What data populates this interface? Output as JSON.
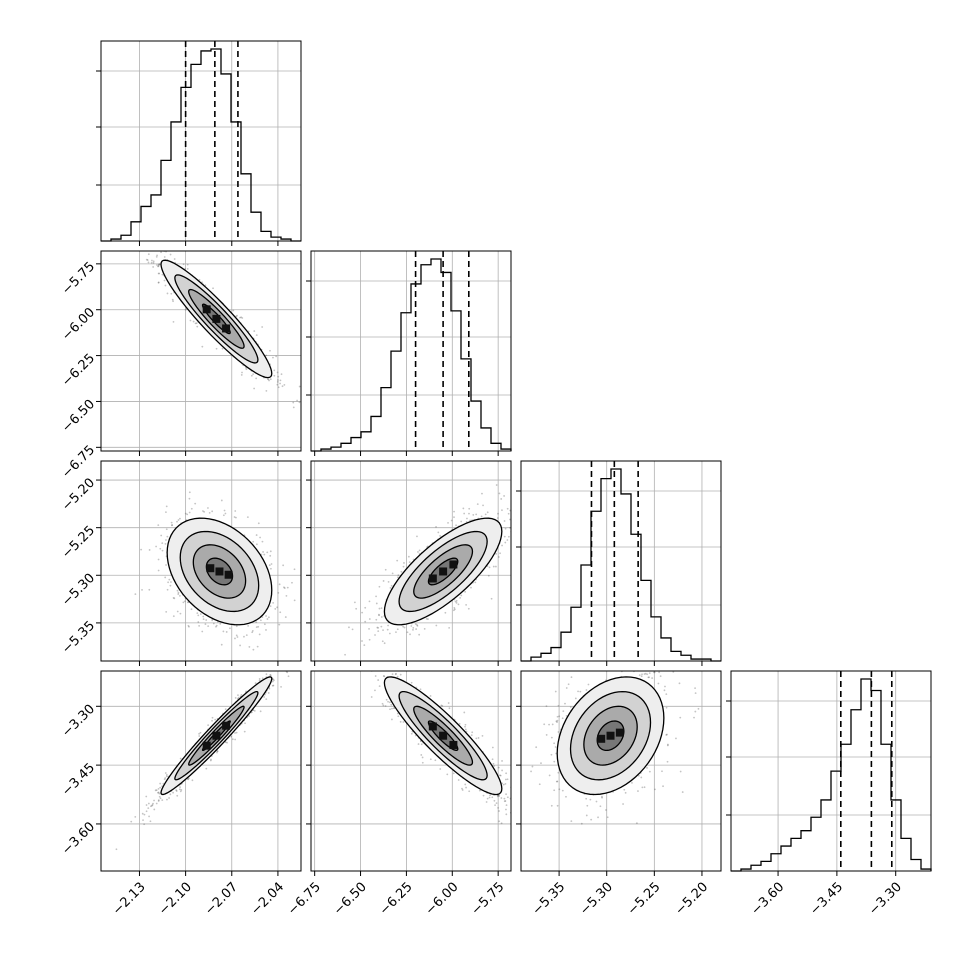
{
  "chart_data": {
    "type": "corner",
    "n_params": 4,
    "params": [
      {
        "range": [
          -2.155,
          -2.025
        ],
        "ticks": [
          -2.13,
          -2.1,
          -2.07,
          -2.04
        ],
        "tick_labels": [
          "−2.13",
          "−2.10",
          "−2.07",
          "−2.04"
        ],
        "quantiles": [
          -2.1,
          -2.081,
          -2.066
        ],
        "hist": [
          0,
          0.01,
          0.03,
          0.1,
          0.18,
          0.24,
          0.42,
          0.62,
          0.8,
          0.92,
          0.99,
          1.0,
          0.87,
          0.62,
          0.35,
          0.15,
          0.05,
          0.02,
          0.01,
          0
        ]
      },
      {
        "range": [
          -6.77,
          -5.68
        ],
        "ticks": [
          -6.75,
          -6.5,
          -6.25,
          -6.0,
          -5.75
        ],
        "tick_labels": [
          "−6.75",
          "−6.50",
          "−6.25",
          "−6.00",
          "−5.75"
        ],
        "quantiles": [
          -6.2,
          -6.05,
          -5.91
        ],
        "hist": [
          0,
          0.01,
          0.02,
          0.04,
          0.07,
          0.1,
          0.18,
          0.33,
          0.52,
          0.72,
          0.87,
          0.97,
          1.0,
          0.93,
          0.73,
          0.48,
          0.26,
          0.12,
          0.04,
          0.01
        ]
      },
      {
        "range": [
          -5.39,
          -5.18
        ],
        "ticks": [
          -5.35,
          -5.3,
          -5.25,
          -5.2
        ],
        "tick_labels": [
          "−5.35",
          "−5.30",
          "−5.25",
          "−5.20"
        ],
        "quantiles": [
          -5.316,
          -5.292,
          -5.267
        ],
        "hist": [
          0,
          0.02,
          0.04,
          0.07,
          0.15,
          0.28,
          0.5,
          0.78,
          0.95,
          1.0,
          0.87,
          0.66,
          0.42,
          0.23,
          0.12,
          0.05,
          0.03,
          0.01,
          0.01,
          0
        ]
      },
      {
        "range": [
          -3.72,
          -3.21
        ],
        "ticks": [
          -3.6,
          -3.45,
          -3.3
        ],
        "tick_labels": [
          "−3.60",
          "−3.45",
          "−3.30"
        ],
        "quantiles": [
          -3.44,
          -3.362,
          -3.31
        ],
        "hist": [
          0,
          0.01,
          0.03,
          0.05,
          0.09,
          0.13,
          0.17,
          0.21,
          0.28,
          0.37,
          0.52,
          0.66,
          0.84,
          1.0,
          0.94,
          0.66,
          0.37,
          0.17,
          0.06,
          0.01
        ]
      }
    ],
    "pairs": [
      {
        "row": 1,
        "col": 0,
        "mean": [
          -2.08,
          -6.05
        ],
        "sd": [
          0.018,
          0.16
        ],
        "corr": -0.93
      },
      {
        "row": 2,
        "col": 0,
        "mean": [
          -2.078,
          -5.296
        ],
        "sd": [
          0.017,
          0.028
        ],
        "corr": -0.35
      },
      {
        "row": 2,
        "col": 1,
        "mean": [
          -6.05,
          -5.296
        ],
        "sd": [
          0.16,
          0.028
        ],
        "corr": 0.75
      },
      {
        "row": 3,
        "col": 0,
        "mean": [
          -2.08,
          -3.375
        ],
        "sd": [
          0.018,
          0.075
        ],
        "corr": 0.97
      },
      {
        "row": 3,
        "col": 1,
        "mean": [
          -6.05,
          -3.375
        ],
        "sd": [
          0.16,
          0.075
        ],
        "corr": -0.9
      },
      {
        "row": 3,
        "col": 2,
        "mean": [
          -5.296,
          -3.375
        ],
        "sd": [
          0.028,
          0.075
        ],
        "corr": 0.3
      }
    ],
    "contour_levels_sigma": [
      0.5,
      1.0,
      1.5,
      2.0
    ],
    "colors": {
      "line": "#000000",
      "grid": "#b0b0b0",
      "points": "#555555",
      "background": "#ffffff"
    },
    "grid": true,
    "legend": "none"
  }
}
